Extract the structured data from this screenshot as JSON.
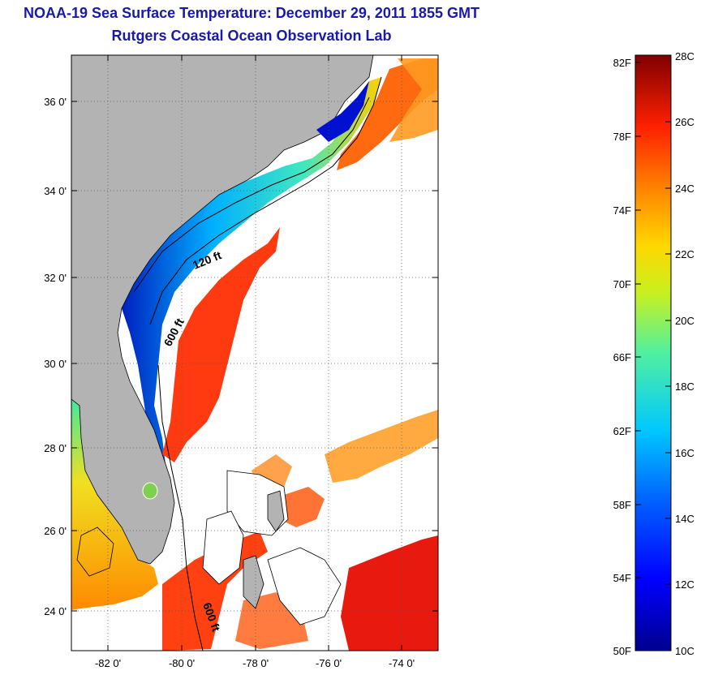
{
  "title": "NOAA-19 Sea Surface Temperature:  December 29, 2011 1855 GMT",
  "subtitle": "Rutgers Coastal Ocean Observation Lab",
  "map": {
    "lat_labels": [
      "36 0'",
      "34 0'",
      "32 0'",
      "30 0'",
      "28 0'",
      "26 0'",
      "24 0'"
    ],
    "lon_labels": [
      "-82 0'",
      "-80 0'",
      "-78 0'",
      "-76 0'",
      "-74 0'"
    ],
    "contour_labels": [
      "120 ft",
      "600 ft",
      "600 ft"
    ],
    "extent": {
      "lon_min": -83.0,
      "lon_max": -73.0,
      "lat_min": 23.0,
      "lat_max": 37.0
    },
    "land_color": "#b3b3b3",
    "gridlines": "dotted"
  },
  "colorbar": {
    "celsius_labels": [
      "28C",
      "26C",
      "24C",
      "22C",
      "20C",
      "18C",
      "16C",
      "14C",
      "12C",
      "10C"
    ],
    "fahrenheit_labels": [
      "82F",
      "78F",
      "74F",
      "70F",
      "66F",
      "62F",
      "58F",
      "54F",
      "50F"
    ],
    "min_c": 10,
    "max_c": 28
  }
}
